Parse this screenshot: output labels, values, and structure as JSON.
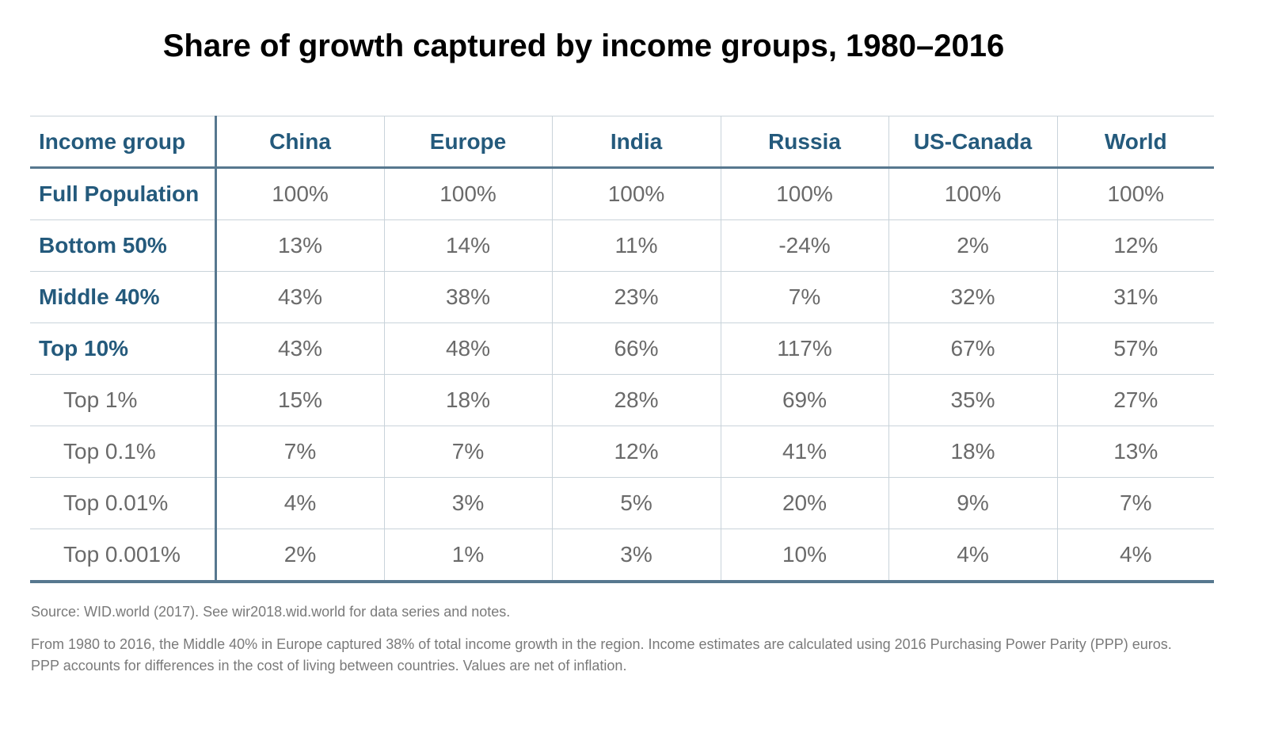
{
  "header": {
    "title": "Share of growth captured by income groups, 1980–2016"
  },
  "table": {
    "columns": [
      "Income group",
      "China",
      "Europe",
      "India",
      "Russia",
      "US-Canada",
      "World"
    ],
    "rows": [
      [
        "Full Population",
        "100%",
        "100%",
        "100%",
        "100%",
        "100%",
        "100%"
      ],
      [
        "Bottom 50%",
        "13%",
        "14%",
        "11%",
        "-24%",
        "2%",
        "12%"
      ],
      [
        "Middle 40%",
        "43%",
        "38%",
        "23%",
        "7%",
        "32%",
        "31%"
      ],
      [
        "Top 10%",
        "43%",
        "48%",
        "66%",
        "117%",
        "67%",
        "57%"
      ],
      [
        "Top 1%",
        "15%",
        "18%",
        "28%",
        "69%",
        "35%",
        "27%"
      ],
      [
        "Top 0.1%",
        "7%",
        "7%",
        "12%",
        "41%",
        "18%",
        "13%"
      ],
      [
        "Top 0.01%",
        "4%",
        "3%",
        "5%",
        "20%",
        "9%",
        "7%"
      ],
      [
        "Top 0.001%",
        "2%",
        "1%",
        "3%",
        "10%",
        "4%",
        "4%"
      ]
    ]
  },
  "footer": {
    "source": "Source: WID.world (2017). See wir2018.wid.world for data series and notes.",
    "note": "From 1980 to 2016, the Middle 40% in Europe captured 38% of total income growth in the region. Income estimates are calculated using 2016 Purchasing Power Parity (PPP) euros. PPP accounts for differences in the cost of living between countries. Values are net of inflation."
  }
}
